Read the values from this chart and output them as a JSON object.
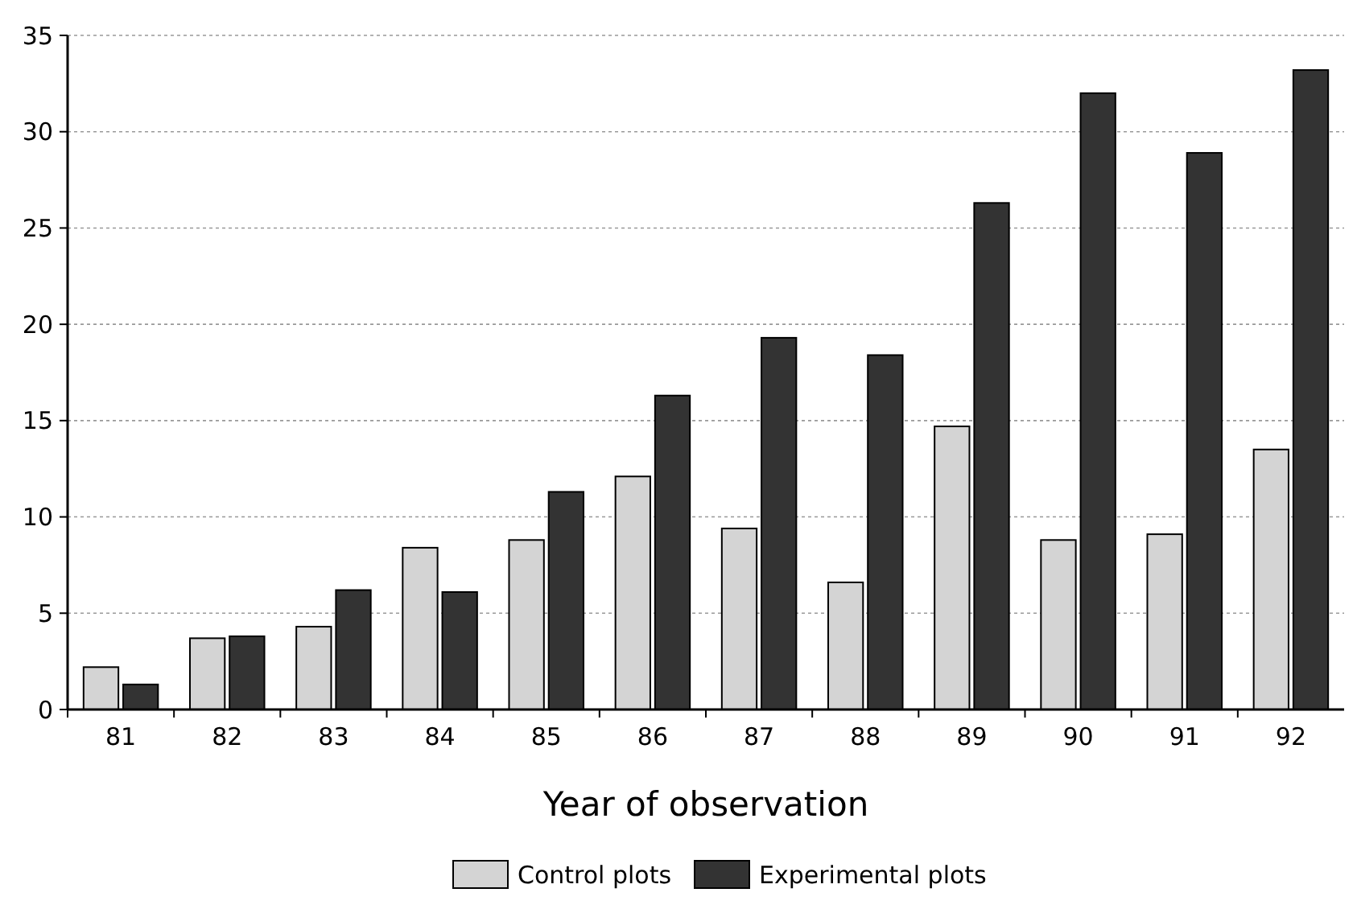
{
  "chart_data": {
    "type": "bar",
    "xlabel": "Year of observation",
    "categories": [
      "81",
      "82",
      "83",
      "84",
      "85",
      "86",
      "87",
      "88",
      "89",
      "90",
      "91",
      "92"
    ],
    "series": [
      {
        "name": "Control plots",
        "color": "#d4d4d4",
        "values": [
          2.2,
          3.7,
          4.3,
          8.4,
          8.8,
          12.1,
          9.4,
          6.6,
          14.7,
          8.8,
          9.1,
          13.5
        ]
      },
      {
        "name": "Experimental plots",
        "color": "#333333",
        "values": [
          1.3,
          3.8,
          6.2,
          6.1,
          11.3,
          16.3,
          19.3,
          18.4,
          26.3,
          32.0,
          28.9,
          33.2
        ]
      }
    ],
    "ylim": [
      0,
      35
    ],
    "yticks": [
      0,
      5,
      10,
      15,
      20,
      25,
      30,
      35
    ],
    "grid": "y",
    "legend": "bottom"
  }
}
